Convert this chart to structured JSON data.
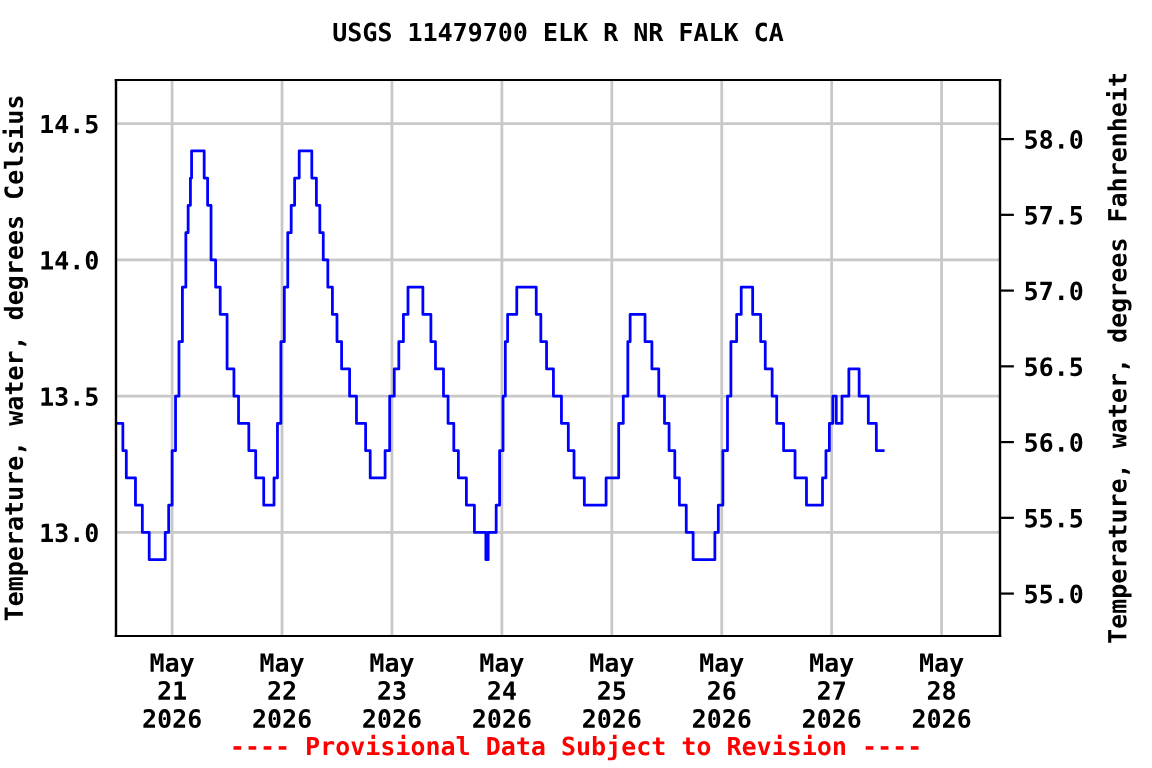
{
  "chart_data": {
    "type": "step",
    "title": "USGS 11479700 ELK R NR FALK CA",
    "ylabel": "Temperature, water, degrees Celsius",
    "y2label": "Temperature, water, degrees Fahrenheit",
    "annotations": [
      "---- Provisional Data Subject to Revision ----"
    ],
    "xlim": [
      "2026-05-20T11:45",
      "2026-05-28T12:45"
    ],
    "xticks": [
      {
        "value": "2026-05-21",
        "label": "May\n21\n2026"
      },
      {
        "value": "2026-05-22",
        "label": "May\n22\n2026"
      },
      {
        "value": "2026-05-23",
        "label": "May\n23\n2026"
      },
      {
        "value": "2026-05-24",
        "label": "May\n24\n2026"
      },
      {
        "value": "2026-05-25",
        "label": "May\n25\n2026"
      },
      {
        "value": "2026-05-26",
        "label": "May\n26\n2026"
      },
      {
        "value": "2026-05-27",
        "label": "May\n27\n2026"
      },
      {
        "value": "2026-05-28",
        "label": "May\n28\n2026"
      }
    ],
    "ylim": [
      12.62,
      14.66
    ],
    "yticks": [
      {
        "value": 13,
        "label": "13.0"
      },
      {
        "value": 13.5,
        "label": "13.5"
      },
      {
        "value": 14,
        "label": "14.0"
      },
      {
        "value": 14.5,
        "label": "14.5"
      }
    ],
    "y2lim": [
      54.72,
      58.39
    ],
    "y2ticks": [
      {
        "value": 55,
        "label": "55.0"
      },
      {
        "value": 55.5,
        "label": "55.5"
      },
      {
        "value": 56,
        "label": "56.0"
      },
      {
        "value": 56.5,
        "label": "56.5"
      },
      {
        "value": 57,
        "label": "57.0"
      },
      {
        "value": 57.5,
        "label": "57.5"
      },
      {
        "value": 58,
        "label": "58.0"
      }
    ],
    "grid": true,
    "legend": false,
    "line_style": "solid",
    "marker": "none",
    "series": [
      {
        "color": "#0000ff",
        "x": [
          "2026-05-20T12:15",
          "2026-05-20T13:15",
          "2026-05-20T14:00",
          "2026-05-20T16:00",
          "2026-05-20T17:30",
          "2026-05-20T19:00",
          "2026-05-20T22:30",
          "2026-05-20T23:15",
          "2026-05-21T00:00",
          "2026-05-21T00:45",
          "2026-05-21T01:30",
          "2026-05-21T02:15",
          "2026-05-21T03:00",
          "2026-05-21T03:30",
          "2026-05-21T04:00",
          "2026-05-21T04:15",
          "2026-05-21T07:00",
          "2026-05-21T07:45",
          "2026-05-21T08:30",
          "2026-05-21T09:30",
          "2026-05-21T10:30",
          "2026-05-21T12:00",
          "2026-05-21T13:30",
          "2026-05-21T14:30",
          "2026-05-21T16:45",
          "2026-05-21T18:15",
          "2026-05-21T20:00",
          "2026-05-21T22:15",
          "2026-05-21T23:00",
          "2026-05-21T23:45",
          "2026-05-22T00:30",
          "2026-05-22T01:15",
          "2026-05-22T02:00",
          "2026-05-22T02:45",
          "2026-05-22T03:45",
          "2026-05-22T06:30",
          "2026-05-22T07:30",
          "2026-05-22T08:15",
          "2026-05-22T09:00",
          "2026-05-22T10:00",
          "2026-05-22T11:00",
          "2026-05-22T12:00",
          "2026-05-22T13:00",
          "2026-05-22T14:45",
          "2026-05-22T16:15",
          "2026-05-22T18:15",
          "2026-05-22T19:15",
          "2026-05-22T22:30",
          "2026-05-22T23:30",
          "2026-05-23T00:30",
          "2026-05-23T01:30",
          "2026-05-23T02:30",
          "2026-05-23T03:30",
          "2026-05-23T06:45",
          "2026-05-23T08:30",
          "2026-05-23T09:30",
          "2026-05-23T11:15",
          "2026-05-23T12:15",
          "2026-05-23T13:30",
          "2026-05-23T14:30",
          "2026-05-23T16:15",
          "2026-05-23T18:00",
          "2026-05-23T20:30",
          "2026-05-23T21:00",
          "2026-05-23T22:45",
          "2026-05-23T23:30",
          "2026-05-24T00:15",
          "2026-05-24T00:45",
          "2026-05-24T01:15",
          "2026-05-24T03:15",
          "2026-05-24T07:30",
          "2026-05-24T08:30",
          "2026-05-24T09:45",
          "2026-05-24T11:15",
          "2026-05-24T13:00",
          "2026-05-24T14:30",
          "2026-05-24T15:45",
          "2026-05-24T18:00",
          "2026-05-24T22:45",
          "2026-05-25T01:30",
          "2026-05-25T02:30",
          "2026-05-25T03:30",
          "2026-05-25T04:00",
          "2026-05-25T07:15",
          "2026-05-25T08:45",
          "2026-05-25T10:15",
          "2026-05-25T11:30",
          "2026-05-25T12:30",
          "2026-05-25T13:45",
          "2026-05-25T14:45",
          "2026-05-25T16:15",
          "2026-05-25T17:45",
          "2026-05-25T22:30",
          "2026-05-25T23:15",
          "2026-05-26T00:15",
          "2026-05-26T01:15",
          "2026-05-26T02:00",
          "2026-05-26T03:15",
          "2026-05-26T04:15",
          "2026-05-26T06:45",
          "2026-05-26T08:30",
          "2026-05-26T09:30",
          "2026-05-26T11:00",
          "2026-05-26T12:00",
          "2026-05-26T13:30",
          "2026-05-26T16:00",
          "2026-05-26T18:30",
          "2026-05-26T22:00",
          "2026-05-26T22:45",
          "2026-05-26T23:30",
          "2026-05-27T00:15",
          "2026-05-27T01:00",
          "2026-05-27T02:15",
          "2026-05-27T03:45",
          "2026-05-27T06:00",
          "2026-05-27T08:00",
          "2026-05-27T09:45",
          "2026-05-27T11:15"
        ],
        "values": [
          13.4,
          13.3,
          13.2,
          13.1,
          13.0,
          12.9,
          13.0,
          13.1,
          13.3,
          13.5,
          13.7,
          13.9,
          14.1,
          14.2,
          14.3,
          14.4,
          14.3,
          14.2,
          14.0,
          13.9,
          13.8,
          13.6,
          13.5,
          13.4,
          13.3,
          13.2,
          13.1,
          13.2,
          13.4,
          13.7,
          13.9,
          14.1,
          14.2,
          14.3,
          14.4,
          14.3,
          14.2,
          14.1,
          14.0,
          13.9,
          13.8,
          13.7,
          13.6,
          13.5,
          13.4,
          13.3,
          13.2,
          13.3,
          13.5,
          13.6,
          13.7,
          13.8,
          13.9,
          13.8,
          13.7,
          13.6,
          13.5,
          13.4,
          13.3,
          13.2,
          13.1,
          13.0,
          12.9,
          13.0,
          13.1,
          13.3,
          13.5,
          13.7,
          13.8,
          13.9,
          13.8,
          13.7,
          13.6,
          13.5,
          13.4,
          13.3,
          13.2,
          13.1,
          13.2,
          13.4,
          13.5,
          13.7,
          13.8,
          13.7,
          13.6,
          13.5,
          13.4,
          13.3,
          13.2,
          13.1,
          13.0,
          12.9,
          13.0,
          13.1,
          13.3,
          13.5,
          13.7,
          13.8,
          13.9,
          13.8,
          13.7,
          13.6,
          13.5,
          13.4,
          13.3,
          13.2,
          13.1,
          13.2,
          13.3,
          13.4,
          13.5,
          13.4,
          13.5,
          13.6,
          13.5,
          13.4,
          13.3,
          13.3
        ]
      }
    ]
  }
}
